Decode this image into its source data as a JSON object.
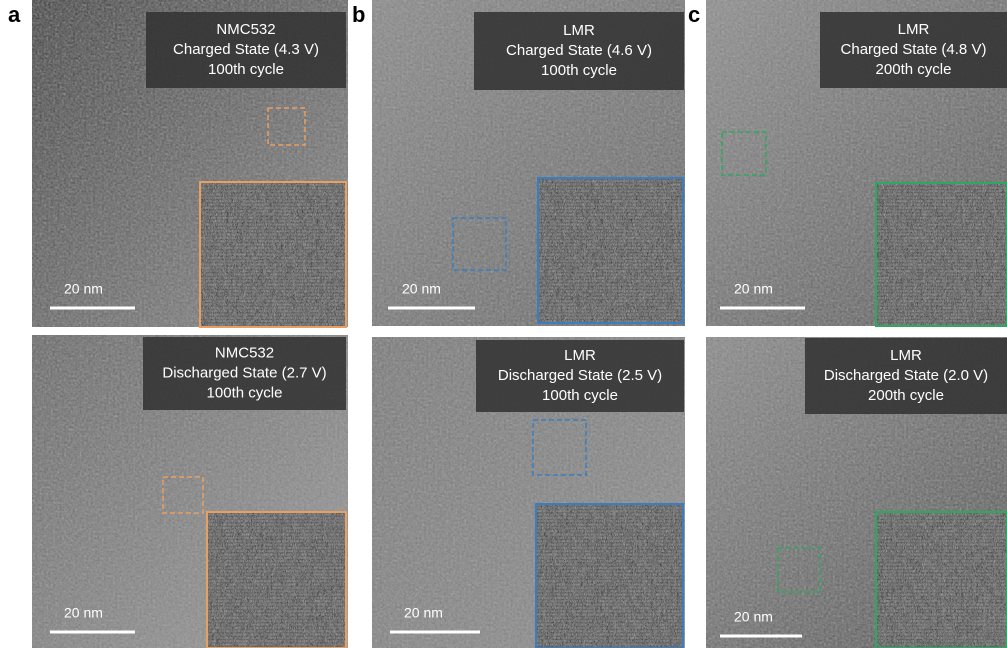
{
  "panels": [
    {
      "letter": "a",
      "images": [
        {
          "caption": [
            "NMC532",
            "Charged State (4.3 V)",
            "100th cycle"
          ],
          "scale_bar": "20 nm"
        },
        {
          "caption": [
            "NMC532",
            "Discharged State (2.7 V)",
            "100th cycle"
          ],
          "scale_bar": "20 nm"
        }
      ]
    },
    {
      "letter": "b",
      "images": [
        {
          "caption": [
            "LMR",
            "Charged State (4.6 V)",
            "100th cycle"
          ],
          "scale_bar": "20 nm"
        },
        {
          "caption": [
            "LMR",
            "Discharged State (2.5 V)",
            "100th cycle"
          ],
          "scale_bar": "20 nm"
        }
      ]
    },
    {
      "letter": "c",
      "images": [
        {
          "caption": [
            "LMR",
            "Charged State (4.8 V)",
            "200th cycle"
          ],
          "scale_bar": "20 nm"
        },
        {
          "caption": [
            "LMR",
            "Discharged State (2.0 V)",
            "200th cycle"
          ],
          "scale_bar": "20 nm"
        }
      ]
    }
  ]
}
